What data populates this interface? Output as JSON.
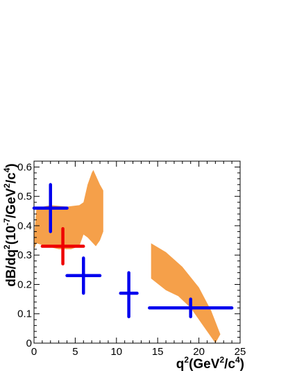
{
  "chart_data": {
    "type": "scatter",
    "title": "",
    "xlabel": {
      "base": "q",
      "sup1": "2",
      "mid": "(GeV",
      "sup2": "2",
      "mid2": "/c",
      "sup3": "4",
      "end": ")"
    },
    "ylabel": {
      "p1": "dB/dq",
      "s1": "2",
      "p2": "(10",
      "s2": "-7",
      "p3": "/GeV",
      "s3": "2",
      "p4": "/c",
      "s4": "4",
      "p5": ")"
    },
    "xlim": [
      0,
      25
    ],
    "ylim": [
      0,
      0.62
    ],
    "x_ticks": [
      {
        "value": 0,
        "label": "0"
      },
      {
        "value": 5,
        "label": "5"
      },
      {
        "value": 10,
        "label": "10"
      },
      {
        "value": 15,
        "label": "15"
      },
      {
        "value": 20,
        "label": "20"
      },
      {
        "value": 25,
        "label": "25"
      }
    ],
    "y_ticks": [
      {
        "value": 0,
        "label": "0"
      },
      {
        "value": 0.1,
        "label": "0.1"
      },
      {
        "value": 0.2,
        "label": "0.2"
      },
      {
        "value": 0.3,
        "label": "0.3"
      },
      {
        "value": 0.4,
        "label": "0.4"
      },
      {
        "value": 0.5,
        "label": "0.5"
      },
      {
        "value": 0.6,
        "label": "0.6"
      }
    ],
    "bands": [
      {
        "color": "#f5a04a",
        "upper": [
          [
            0,
            0.36
          ],
          [
            0.3,
            0.46
          ],
          [
            2,
            0.47
          ],
          [
            4,
            0.465
          ],
          [
            5.5,
            0.47
          ],
          [
            6,
            0.48
          ],
          [
            6.5,
            0.54
          ],
          [
            7,
            0.58
          ],
          [
            7.2,
            0.59
          ],
          [
            8,
            0.54
          ],
          [
            8.4,
            0.52
          ]
        ],
        "lower": [
          [
            8.4,
            0.38
          ],
          [
            8,
            0.35
          ],
          [
            7.5,
            0.33
          ],
          [
            6.5,
            0.36
          ],
          [
            6,
            0.37
          ],
          [
            5.5,
            0.33
          ],
          [
            4.5,
            0.32
          ],
          [
            3,
            0.32
          ],
          [
            1.5,
            0.33
          ],
          [
            0.3,
            0.34
          ],
          [
            0,
            0.32
          ]
        ]
      },
      {
        "color": "#f5a04a",
        "upper": [
          [
            14.2,
            0.34
          ],
          [
            16,
            0.31
          ],
          [
            18,
            0.26
          ],
          [
            20,
            0.19
          ],
          [
            21.5,
            0.11
          ],
          [
            22.6,
            0.03
          ]
        ],
        "lower": [
          [
            22.6,
            0.03
          ],
          [
            22,
            0.0
          ],
          [
            20.5,
            0.06
          ],
          [
            19,
            0.12
          ],
          [
            17.5,
            0.16
          ],
          [
            16,
            0.18
          ],
          [
            14.2,
            0.22
          ]
        ]
      }
    ],
    "series": [
      {
        "color": "#0000ee",
        "points": [
          {
            "x": 2.0,
            "y": 0.46,
            "xlo": 0,
            "xhi": 4,
            "ylo": 0.38,
            "yhi": 0.54
          },
          {
            "x": 6.0,
            "y": 0.23,
            "xlo": 4,
            "xhi": 8,
            "ylo": 0.17,
            "yhi": 0.29
          },
          {
            "x": 11.5,
            "y": 0.17,
            "xlo": 10.5,
            "xhi": 12.5,
            "ylo": 0.09,
            "yhi": 0.24
          },
          {
            "x": 19.0,
            "y": 0.12,
            "xlo": 14,
            "xhi": 24,
            "ylo": 0.09,
            "yhi": 0.15
          }
        ]
      },
      {
        "color": "#ee0000",
        "points": [
          {
            "x": 3.5,
            "y": 0.33,
            "xlo": 1,
            "xhi": 6,
            "ylo": 0.27,
            "yhi": 0.39
          }
        ]
      }
    ],
    "grid": false,
    "legend": "none"
  }
}
